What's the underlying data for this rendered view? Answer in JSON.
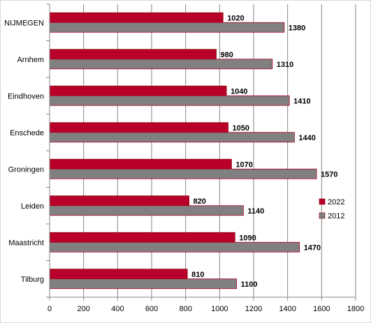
{
  "chart_data": {
    "type": "bar",
    "orientation": "horizontal",
    "categories": [
      "NIJMEGEN",
      "Arnhem",
      "Eindhoven",
      "Enschede",
      "Groningen",
      "Leiden",
      "Maastricht",
      "Tilburg"
    ],
    "series": [
      {
        "name": "2022",
        "color": "#b8002b",
        "values": [
          1020,
          980,
          1040,
          1050,
          1070,
          820,
          1090,
          810
        ]
      },
      {
        "name": "2012",
        "color": "#808080",
        "values": [
          1380,
          1310,
          1410,
          1440,
          1570,
          1140,
          1470,
          1100
        ]
      }
    ],
    "title": "",
    "xlabel": "",
    "ylabel": "",
    "xlim": [
      0,
      1800
    ],
    "xticks": [
      0,
      200,
      400,
      600,
      800,
      1000,
      1200,
      1400,
      1600,
      1800
    ],
    "grid": "vertical",
    "legend": "right",
    "data_labels": true
  }
}
